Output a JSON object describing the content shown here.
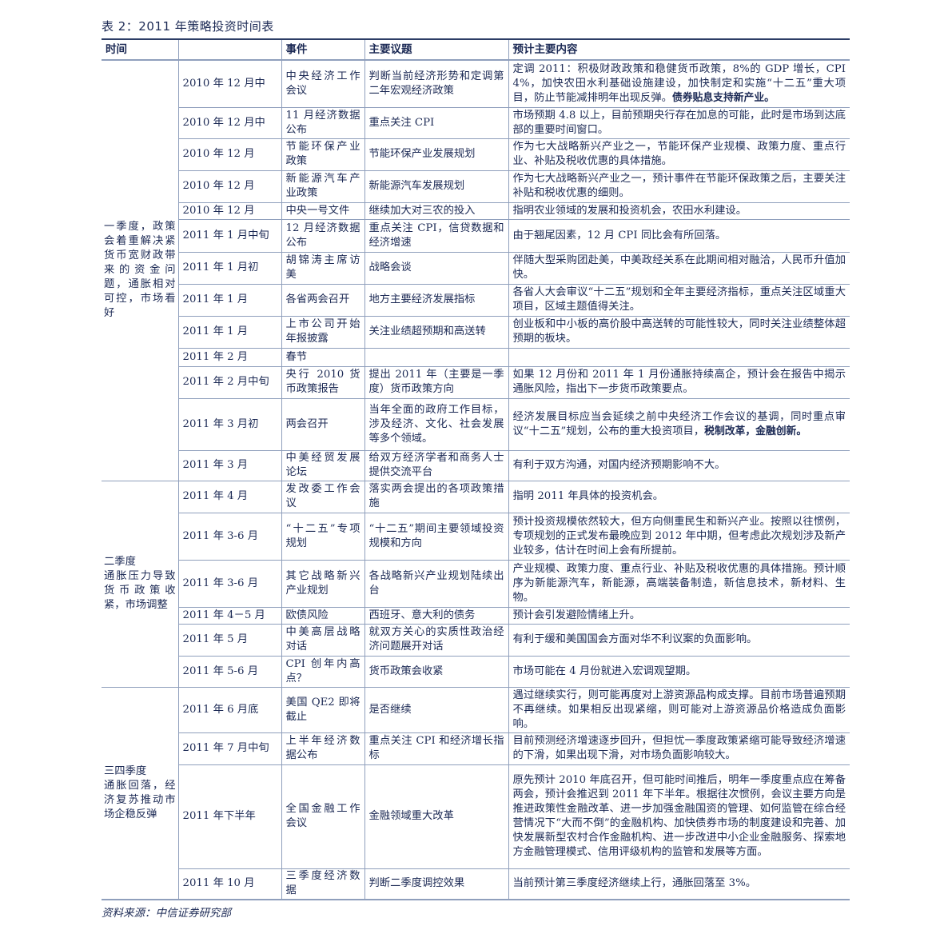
{
  "title": "表 2：2011 年策略投资时间表",
  "headers": [
    "时间",
    "",
    "事件",
    "主要议题",
    "预计主要内容"
  ],
  "groups": [
    {
      "period": "一季度，政策会着重解决紧货币宽财政带来的资金问题，通胀相对可控，市场看好",
      "rows": [
        {
          "time": "2010 年 12 月中",
          "event": "中央经济工作会议",
          "topic": "判断当前经济形势和定调第二年宏观经济政策",
          "content": "定调 2011：积极财政政策和稳健货币政策，8%的 GDP 增长，CPI4%，加快农田水利基础设施建设，加快制定和实施“十二五”重大项目，防止节能减排明年出现反弹。",
          "bold": "债券贴息支持新产业。"
        },
        {
          "time": "2010 年 12 月中",
          "event": "11 月经济数据公布",
          "topic": "重点关注 CPI",
          "content": "市场预期 4.8 以上，目前预期央行存在加息的可能，此时是市场到达底部的重要时间窗口。"
        },
        {
          "time": "2010 年 12 月",
          "event": "节能环保产业政策",
          "topic": "节能环保产业发展规划",
          "content": "作为七大战略新兴产业之一，节能环保产业规模、政策力度、重点行业、补贴及税收优惠的具体措施。"
        },
        {
          "time": "2010 年 12 月",
          "event": "新能源汽车产业政策",
          "topic": "新能源汽车发展规划",
          "content": "作为七大战略新兴产业之一，预计事件在节能环保政策之后，主要关注补贴和税收优惠的细则。"
        },
        {
          "time": "2010 年 12 月",
          "event": "中央一号文件",
          "topic": "继续加大对三农的投入",
          "content": "指明农业领域的发展和投资机会，农田水利建设。"
        },
        {
          "time": "2011 年 1 月中旬",
          "event": "12 月经济数据公布",
          "topic": "重点关注 CPI，信贷数据和经济增速",
          "content": "由于翘尾因素，12 月 CPI 同比会有所回落。"
        },
        {
          "time": "2011 年 1 月初",
          "event": "胡锦涛主席访美",
          "topic": "战略会谈",
          "content": "伴随大型采购团赴美，中美政经关系在此期间相对融洽，人民币升值加快。"
        },
        {
          "time": "2011 年 1 月",
          "event": "各省两会召开",
          "topic": "地方主要经济发展指标",
          "content": "各省人大会审议“十二五”规划和全年主要经济指标，重点关注区域重大项目，区域主题值得关注。"
        },
        {
          "time": "2011 年 1 月",
          "event": "上市公司开始年报披露",
          "topic": "关注业绩超预期和高送转",
          "content": "创业板和中小板的高价股中高送转的可能性较大，同时关注业绩整体超预期的板块。"
        },
        {
          "time": "2011 年 2 月",
          "event": "春节",
          "topic": "",
          "content": ""
        },
        {
          "time": "2011 年 2 月中旬",
          "event": "央行 2010 货币政策报告",
          "topic": "提出 2011 年（主要是一季度）货币政策方向",
          "content": "如果 12 月份和 2011 年 1 月份通胀持续高企，预计会在报告中揭示通胀风险，指出下一步货币政策要点。"
        },
        {
          "time": "2011 年 3 月初",
          "event": "两会召开",
          "topic": "当年全面的政府工作目标，涉及经济、文化、社会发展等多个领域。",
          "content": "经济发展目标应当会延续之前中央经济工作会议的基调，同时重点审议“十二五”规划，公布的重大投资项目，",
          "bold": "税制改革，金融创新。"
        },
        {
          "time": "2011 年 3 月",
          "event": "中美经贸发展论坛",
          "topic": "给双方经济学者和商务人士提供交流平台",
          "content": "有利于双方沟通，对国内经济预期影响不大。"
        }
      ]
    },
    {
      "period": "二季度\n通胀压力导致货币政策收紧，市场调整",
      "rows": [
        {
          "time": "2011 年 4 月",
          "event": "发改委工作会议",
          "topic": "落实两会提出的各项政策措施",
          "content": "指明 2011 年具体的投资机会。"
        },
        {
          "time": "2011 年 3-6 月",
          "event": "“十二五”专项规划",
          "topic": "“十二五”期间主要领域投资规模和方向",
          "content": "预计投资规模依然较大，但方向侧重民生和新兴产业。按照以往惯例，专项规划的正式发布最晚应到 2012 年中期，但考虑此次规划涉及新产业较多，估计在时间上会有所提前。"
        },
        {
          "time": "2011 年 3-6 月",
          "event": "其它战略新兴产业规划",
          "topic": "各战略新兴产业规划陆续出台",
          "content": "产业规模、政策力度、重点行业、补贴及税收优惠的具体措施。预计顺序为新能源汽车，新能源，高端装备制造，新信息技术，新材料、生物。"
        },
        {
          "time": "2011 年 4－5 月",
          "event": "欧债风险",
          "topic": "西班牙、意大利的债务",
          "content": "预计会引发避险情绪上升。"
        },
        {
          "time": "2011 年 5 月",
          "event": "中美高层战略对话",
          "topic": "就双方关心的实质性政治经济问题展开对话",
          "content": "有利于缓和美国国会方面对华不利议案的负面影响。"
        },
        {
          "time": "2011 年 5-6 月",
          "event": "CPI 创年内高点？",
          "topic": "货币政策会收紧",
          "content": "市场可能在 4 月份就进入宏调观望期。"
        }
      ]
    },
    {
      "period": "三四季度\n通胀回落，经济复苏推动市场企稳反弹",
      "rows": [
        {
          "time": "2011 年 6 月底",
          "event": "美国 QE2 即将截止",
          "topic": "是否继续",
          "content": "遇过继续实行，则可能再度对上游资源品构成支撑。目前市场普遍预期不再继续。如果相反出现紧缩，则可能对上游资源品价格造成负面影响。"
        },
        {
          "time": "2011 年 7 月中旬",
          "event": "上半年经济数据公布",
          "topic": "重点关注 CPI 和经济增长指标",
          "content": "目前预测经济增速逐步回升，但担忧一季度政策紧缩可能导致经济增速的下滑，如果出现下滑，对市场负面影响较大。"
        },
        {
          "time": "2011 年下半年",
          "event": "全国金融工作会议",
          "topic": "金融领域重大改革",
          "content": "原先预计 2010 年底召开，但可能时间推后，明年一季度重点应在筹备两会，预计会推迟到 2011 年下半年。根据往次惯例，会议主要方向是推进政策性金融改革、进一步加强金融国资的管理、如何监管在综合经营情况下“大而不倒”的金融机构、加快债券市场的制度建设和完善、加快发展新型农村合作金融机构、进一步改进中小企业金融服务、探索地方金融管理模式、信用评级机构的监管和发展等方面。"
        },
        {
          "time": "2011 年 10 月",
          "event": "三季度经济数据",
          "topic": "判断二季度调控效果",
          "content": "当前预计第三季度经济继续上行，通胀回落至 3%。"
        }
      ]
    }
  ],
  "source": "资料来源：中信证券研究部"
}
